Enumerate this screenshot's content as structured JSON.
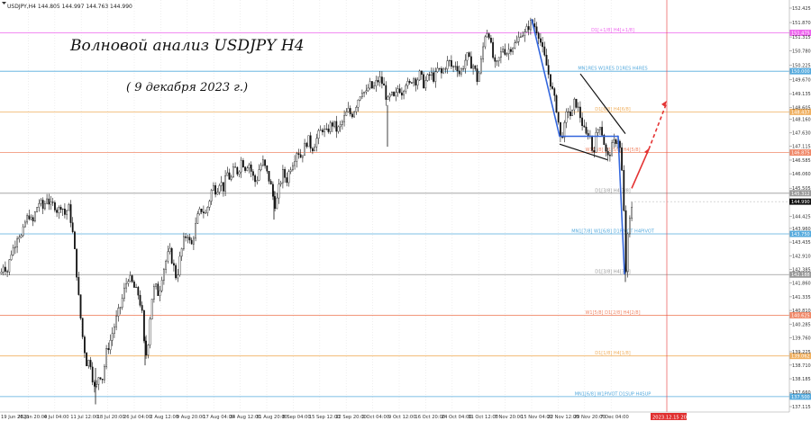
{
  "window": {
    "symbol_header": "USDJPY,H4  144.805 144.997 144.763 144.990"
  },
  "annotations": {
    "title": "Волновой анализ USDJPY H4",
    "date": "( 9 декабря 2023 г.)"
  },
  "chart_data": {
    "type": "candlestick",
    "ylim": [
      137.115,
      152.425
    ],
    "y_ticks": [
      152.425,
      151.87,
      151.315,
      150.78,
      150.225,
      149.67,
      149.135,
      148.605,
      148.16,
      147.63,
      147.115,
      146.585,
      146.06,
      145.505,
      144.99,
      144.425,
      143.96,
      143.435,
      142.91,
      142.385,
      141.86,
      141.335,
      140.81,
      140.285,
      139.76,
      139.225,
      138.71,
      138.185,
      137.66,
      137.115
    ],
    "x_ticks": [
      "19 Jun 2023",
      "26 Jun 20:00",
      "4 Jul 04:00",
      "11 Jul 12:00",
      "18 Jul 20:00",
      "26 Jul 04:00",
      "2 Aug 12:00",
      "9 Aug 20:00",
      "17 Aug 04:00",
      "24 Aug 12:00",
      "31 Aug 20:00",
      "8 Sep 04:00",
      "15 Sep 12:00",
      "22 Sep 20:00",
      "2 Oct 04:00",
      "9 Oct 12:00",
      "16 Oct 20:00",
      "24 Oct 04:00",
      "31 Oct 12:00",
      "7 Nov 20:00",
      "15 Nov 04:00",
      "22 Nov 12:00",
      "29 Nov 20:00",
      "7 Dec 04:00"
    ],
    "future_tag": "2023.12.15 20:00",
    "current_price": "144.990",
    "path": [
      [
        0,
        142.1
      ],
      [
        4,
        142.6
      ],
      [
        8,
        142.3
      ],
      [
        12,
        143.0
      ],
      [
        16,
        143.3
      ],
      [
        20,
        143.8
      ],
      [
        24,
        143.6
      ],
      [
        28,
        144.2
      ],
      [
        32,
        144.5
      ],
      [
        36,
        144.1
      ],
      [
        40,
        144.7
      ],
      [
        44,
        145.0
      ],
      [
        48,
        144.7
      ],
      [
        52,
        145.2
      ],
      [
        56,
        144.8
      ],
      [
        60,
        144.9
      ],
      [
        64,
        144.6
      ],
      [
        68,
        144.9
      ],
      [
        72,
        144.5
      ],
      [
        76,
        144.8
      ],
      [
        80,
        144.0
      ],
      [
        84,
        142.7
      ],
      [
        88,
        141.0
      ],
      [
        92,
        139.7
      ],
      [
        96,
        138.8
      ],
      [
        100,
        138.9
      ],
      [
        104,
        137.9
      ],
      [
        106,
        137.7
      ],
      [
        110,
        138.4
      ],
      [
        114,
        138.2
      ],
      [
        118,
        139.2
      ],
      [
        122,
        139.6
      ],
      [
        126,
        140.1
      ],
      [
        130,
        140.6
      ],
      [
        134,
        141.0
      ],
      [
        138,
        141.6
      ],
      [
        142,
        142.1
      ],
      [
        146,
        141.9
      ],
      [
        150,
        141.6
      ],
      [
        154,
        141.4
      ],
      [
        158,
        140.6
      ],
      [
        161,
        138.9
      ],
      [
        164,
        139.5
      ],
      [
        168,
        141.2
      ],
      [
        172,
        141.8
      ],
      [
        176,
        141.4
      ],
      [
        180,
        142.2
      ],
      [
        184,
        142.7
      ],
      [
        188,
        143.1
      ],
      [
        192,
        142.6
      ],
      [
        196,
        142.0
      ],
      [
        200,
        142.9
      ],
      [
        204,
        143.5
      ],
      [
        208,
        143.8
      ],
      [
        212,
        143.2
      ],
      [
        216,
        143.9
      ],
      [
        220,
        144.5
      ],
      [
        224,
        144.7
      ],
      [
        228,
        144.5
      ],
      [
        232,
        145.0
      ],
      [
        236,
        145.6
      ],
      [
        240,
        145.4
      ],
      [
        244,
        145.8
      ],
      [
        248,
        145.5
      ],
      [
        252,
        146.1
      ],
      [
        256,
        145.8
      ],
      [
        260,
        146.3
      ],
      [
        264,
        146.1
      ],
      [
        268,
        146.6
      ],
      [
        272,
        146.3
      ],
      [
        276,
        146.5
      ],
      [
        280,
        146.0
      ],
      [
        284,
        145.7
      ],
      [
        288,
        146.3
      ],
      [
        292,
        146.5
      ],
      [
        296,
        146.1
      ],
      [
        300,
        145.7
      ],
      [
        304,
        145.0
      ],
      [
        306,
        144.8
      ],
      [
        310,
        145.6
      ],
      [
        314,
        146.1
      ],
      [
        318,
        145.8
      ],
      [
        322,
        146.3
      ],
      [
        326,
        146.6
      ],
      [
        330,
        147.0
      ],
      [
        334,
        146.7
      ],
      [
        338,
        147.1
      ],
      [
        342,
        147.4
      ],
      [
        346,
        147.0
      ],
      [
        350,
        147.3
      ],
      [
        354,
        147.6
      ],
      [
        358,
        147.8
      ],
      [
        362,
        147.6
      ],
      [
        366,
        147.9
      ],
      [
        370,
        148.0
      ],
      [
        374,
        147.7
      ],
      [
        378,
        147.9
      ],
      [
        382,
        148.2
      ],
      [
        386,
        148.5
      ],
      [
        390,
        148.3
      ],
      [
        394,
        148.6
      ],
      [
        398,
        149.0
      ],
      [
        402,
        149.3
      ],
      [
        406,
        149.1
      ],
      [
        410,
        149.5
      ],
      [
        414,
        149.3
      ],
      [
        418,
        149.6
      ],
      [
        422,
        149.7
      ],
      [
        426,
        149.4
      ],
      [
        430,
        148.8
      ],
      [
        434,
        149.1
      ],
      [
        438,
        148.9
      ],
      [
        442,
        149.4
      ],
      [
        446,
        149.2
      ],
      [
        450,
        149.6
      ],
      [
        454,
        149.4
      ],
      [
        458,
        149.8
      ],
      [
        462,
        149.6
      ],
      [
        466,
        149.9
      ],
      [
        470,
        149.5
      ],
      [
        474,
        149.7
      ],
      [
        478,
        149.9
      ],
      [
        482,
        149.7
      ],
      [
        486,
        150.1
      ],
      [
        490,
        149.9
      ],
      [
        494,
        150.2
      ],
      [
        498,
        150.4
      ],
      [
        502,
        150.1
      ],
      [
        506,
        150.3
      ],
      [
        510,
        149.9
      ],
      [
        514,
        150.2
      ],
      [
        518,
        150.6
      ],
      [
        522,
        150.3
      ],
      [
        526,
        150.2
      ],
      [
        530,
        149.6
      ],
      [
        534,
        150.4
      ],
      [
        538,
        151.4
      ],
      [
        542,
        151.6
      ],
      [
        546,
        150.7
      ],
      [
        550,
        150.1
      ],
      [
        554,
        150.5
      ],
      [
        558,
        150.9
      ],
      [
        562,
        150.7
      ],
      [
        566,
        150.9
      ],
      [
        570,
        151.0
      ],
      [
        574,
        151.1
      ],
      [
        578,
        151.5
      ],
      [
        582,
        151.4
      ],
      [
        586,
        151.7
      ],
      [
        590,
        151.9
      ],
      [
        594,
        151.7
      ],
      [
        598,
        151.4
      ],
      [
        602,
        150.8
      ],
      [
        606,
        150.3
      ],
      [
        610,
        149.7
      ],
      [
        614,
        149.1
      ],
      [
        618,
        148.5
      ],
      [
        622,
        147.4
      ],
      [
        626,
        147.8
      ],
      [
        630,
        148.6
      ],
      [
        634,
        148.2
      ],
      [
        638,
        148.9
      ],
      [
        642,
        148.5
      ],
      [
        646,
        148.0
      ],
      [
        650,
        147.5
      ],
      [
        654,
        147.7
      ],
      [
        658,
        146.8
      ],
      [
        662,
        147.6
      ],
      [
        666,
        148.0
      ],
      [
        670,
        147.3
      ],
      [
        674,
        146.6
      ],
      [
        678,
        147.0
      ],
      [
        682,
        147.3
      ],
      [
        686,
        147.4
      ],
      [
        689,
        146.8
      ],
      [
        692,
        145.0
      ],
      [
        694,
        142.0
      ],
      [
        696,
        143.4
      ],
      [
        698,
        144.0
      ],
      [
        700,
        144.6
      ],
      [
        702,
        144.99
      ]
    ],
    "levels": [
      {
        "price": 151.475,
        "label": "D1[+1/8] H4[+1/8]",
        "tag": "151.475",
        "color": "#ee66ee"
      },
      {
        "price": 150.0,
        "label": "MN1RES W1RES D1RES H4RES",
        "tag": "150.000",
        "color": "#55aadd"
      },
      {
        "price": 148.437,
        "label": "D1[6/8] H4[6/8]",
        "tag": "148.437",
        "color": "#f0b060"
      },
      {
        "price": 146.875,
        "label": "W1[7/8] D1[5/8] H4[5/8]",
        "tag": "146.875",
        "color": "#f08868"
      },
      {
        "price": 145.312,
        "label": "D1[3/8] H4[3/8]",
        "tag": "145.312",
        "color": "#999999"
      },
      {
        "price": 143.75,
        "label": "MN1[7/8] W1[6/8] D1PIVOT H4PIVOT",
        "tag": "143.750",
        "color": "#55aadd"
      },
      {
        "price": 142.187,
        "label": "D1[3/8] H4[3/8]",
        "tag": "142.188",
        "color": "#999999"
      },
      {
        "price": 140.625,
        "label": "W1[5/8] D1[2/8] H4[2/8]",
        "tag": "140.625",
        "color": "#f08868"
      },
      {
        "price": 139.062,
        "label": "D1[1/8] H4[1/8]",
        "tag": "139.062",
        "color": "#f0b060"
      },
      {
        "price": 137.5,
        "label": "MN1[6/8] W1PIVOT D1SUP H4SUP",
        "tag": "137.500",
        "color": "#55aadd"
      }
    ],
    "wave_blue": [
      [
        590,
        152.0
      ],
      [
        621,
        147.5
      ],
      [
        686,
        147.5
      ],
      [
        693,
        142.2
      ]
    ],
    "wedge_upper": [
      [
        644,
        149.9
      ],
      [
        694,
        147.6
      ]
    ],
    "wedge_lower": [
      [
        621,
        147.2
      ],
      [
        674,
        146.6
      ]
    ],
    "forecast_solid": [
      [
        701,
        145.5
      ],
      [
        720,
        147.0
      ]
    ],
    "forecast_dashed": [
      [
        720,
        147.0
      ],
      [
        740,
        148.8
      ]
    ],
    "colors": {
      "candle": "#111111",
      "wave": "#3366dd",
      "forecast": "#e43434",
      "future_line": "#e85050",
      "axis": "#bbbbbb"
    }
  }
}
